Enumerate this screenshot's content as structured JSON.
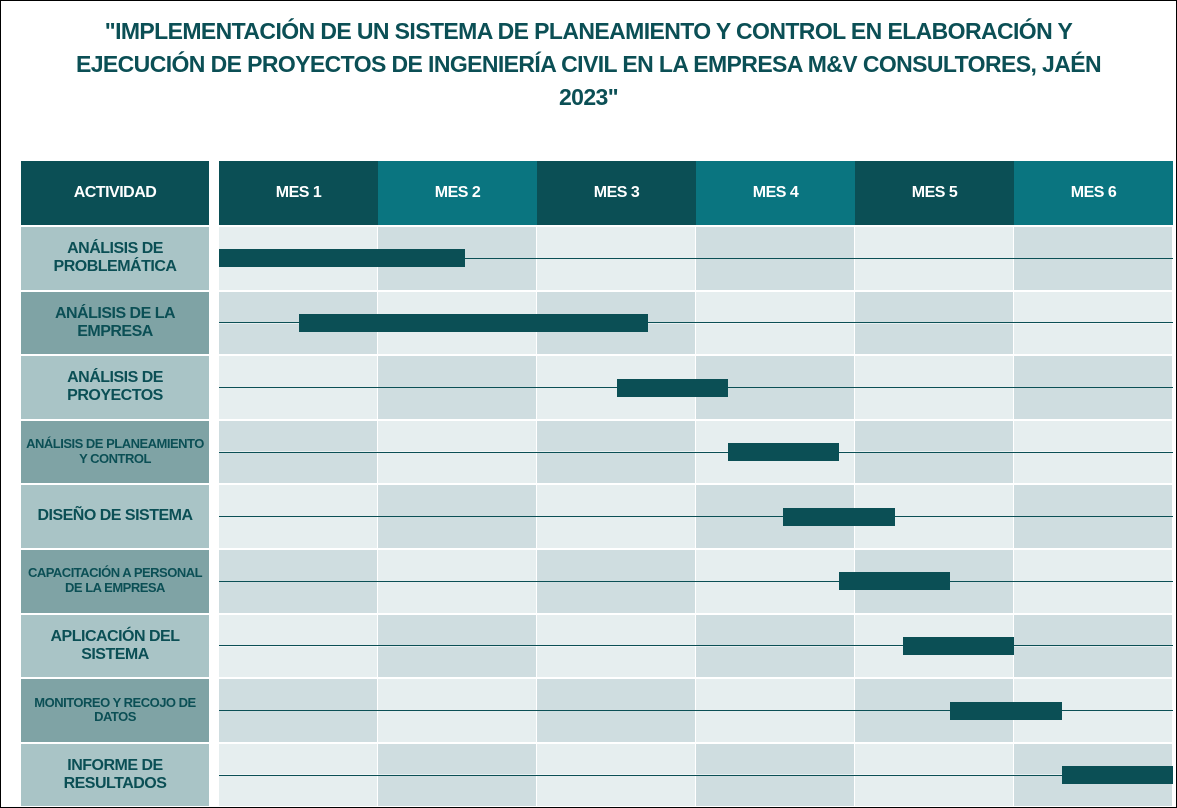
{
  "chart_data": {
    "type": "gantt",
    "title": "\"IMPLEMENTACIÓN DE UN SISTEMA DE PLANEAMIENTO Y CONTROL EN ELABORACIÓN Y EJECUCIÓN DE PROYECTOS DE INGENIERÍA CIVIL EN LA EMPRESA M&V CONSULTORES, JAÉN 2023\"",
    "header": "ACTIVIDAD",
    "categories": [
      "MES 1",
      "MES 2",
      "MES 3",
      "MES 4",
      "MES 5",
      "MES 6"
    ],
    "xlim": [
      0,
      6
    ],
    "color": "#0b4f55",
    "tasks": [
      {
        "name": "ANÁLISIS DE PROBLEMÁTICA",
        "start": 0,
        "end": 1.55
      },
      {
        "name": "ANÁLISIS DE LA EMPRESA",
        "start": 0.5,
        "end": 2.7
      },
      {
        "name": "ANÁLISIS DE PROYECTOS",
        "start": 2.5,
        "end": 3.2
      },
      {
        "name": "ANÁLISIS DE PLANEAMIENTO Y CONTROL",
        "start": 3.2,
        "end": 3.9
      },
      {
        "name": "DISEÑO DE SISTEMA",
        "start": 3.55,
        "end": 4.25
      },
      {
        "name": "CAPACITACIÓN A PERSONAL DE LA EMPRESA",
        "start": 3.9,
        "end": 4.6
      },
      {
        "name": "APLICACIÓN DEL SISTEMA",
        "start": 4.3,
        "end": 5.0
      },
      {
        "name": "MONITOREO Y RECOJO DE DATOS",
        "start": 4.6,
        "end": 5.3
      },
      {
        "name": "INFORME DE RESULTADOS",
        "start": 5.3,
        "end": 6.0
      }
    ]
  }
}
